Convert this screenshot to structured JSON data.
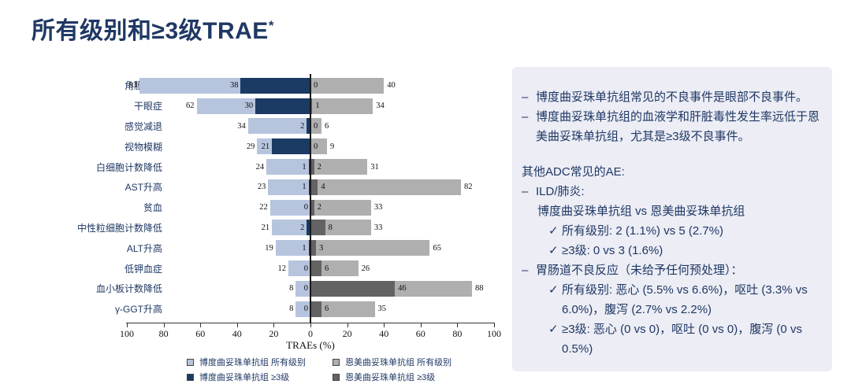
{
  "slide": {
    "title": "所有级别和≥3级TRAE",
    "title_superscript": "*",
    "accent_color": "#1F3864",
    "background": "#FFFFFF"
  },
  "chart_data": {
    "type": "bar",
    "variant": "horizontal-diverging-tornado",
    "title": "",
    "xlabel": "TRAEs (%)",
    "ylabel": "",
    "x_ticks": [
      100,
      80,
      60,
      40,
      20,
      0,
      20,
      40,
      60,
      80,
      100
    ],
    "x_range_each_side": [
      0,
      100
    ],
    "grid": false,
    "legend_position": "bottom",
    "categories": [
      "角膜疾病",
      "干眼症",
      "感觉减退",
      "视物模糊",
      "白细胞计数降低",
      "AST升高",
      "贫血",
      "中性粒细胞计数降低",
      "ALT升高",
      "低钾血症",
      "血小板计数降低",
      "γ-GGT升高"
    ],
    "series": [
      {
        "name": "博度曲妥珠单抗组 所有级别",
        "side": "left",
        "color": "#B6C4DE",
        "values": [
          93,
          62,
          34,
          29,
          24,
          23,
          22,
          21,
          19,
          12,
          8,
          8
        ]
      },
      {
        "name": "博度曲妥珠单抗组 ≥3级",
        "side": "left",
        "color": "#1B3A64",
        "values": [
          38,
          30,
          2,
          21,
          1,
          1,
          0,
          2,
          1,
          0,
          0,
          0
        ]
      },
      {
        "name": "恩美曲妥珠单抗组 所有级别",
        "side": "right",
        "color": "#AFAFAF",
        "values": [
          40,
          34,
          6,
          9,
          31,
          82,
          33,
          33,
          65,
          26,
          88,
          35
        ]
      },
      {
        "name": "恩美曲妥珠单抗组 ≥3级",
        "side": "right",
        "color": "#636363",
        "values": [
          0,
          1,
          0,
          0,
          2,
          4,
          2,
          8,
          3,
          6,
          46,
          6
        ]
      }
    ]
  },
  "legend": {
    "items": [
      {
        "label": "博度曲妥珠单抗组 所有级别",
        "color": "#B6C4DE"
      },
      {
        "label": "博度曲妥珠单抗组 ≥3级",
        "color": "#1B3A64"
      },
      {
        "label": "恩美曲妥珠单抗组 所有级别",
        "color": "#AFAFAF"
      },
      {
        "label": "恩美曲妥珠单抗组 ≥3级",
        "color": "#636363"
      }
    ]
  },
  "panel": {
    "background": "#ECEDF5",
    "text_color": "#1F3864",
    "dash_marker": "–",
    "check_marker": "✓",
    "lines": [
      {
        "style": "dash",
        "text": "博度曲妥珠单抗组常见的不良事件是眼部不良事件。"
      },
      {
        "style": "dash",
        "text": "博度曲妥珠单抗组的血液学和肝脏毒性发生率远低于恩美曲妥珠单抗组，尤其是≥3级不良事件。"
      },
      {
        "style": "spacer",
        "text": ""
      },
      {
        "style": "plain",
        "text": "其他ADC常见的AE:"
      },
      {
        "style": "dash",
        "text": "ILD/肺炎:"
      },
      {
        "style": "sub",
        "text": "博度曲妥珠单抗组 vs 恩美曲妥珠单抗组"
      },
      {
        "style": "check",
        "text": "所有级别: 2 (1.1%) vs 5 (2.7%)"
      },
      {
        "style": "check",
        "text": "≥3级: 0 vs 3 (1.6%)"
      },
      {
        "style": "dash",
        "text": "胃肠道不良反应（未给予任何预处理）："
      },
      {
        "style": "check",
        "text": "所有级别: 恶心 (5.5% vs 6.6%)，呕吐 (3.3% vs 6.0%)，腹泻 (2.7% vs 2.2%)"
      },
      {
        "style": "check",
        "text": "≥3级: 恶心 (0 vs 0)，呕吐 (0 vs 0)，腹泻 (0 vs 0.5%)"
      }
    ]
  }
}
